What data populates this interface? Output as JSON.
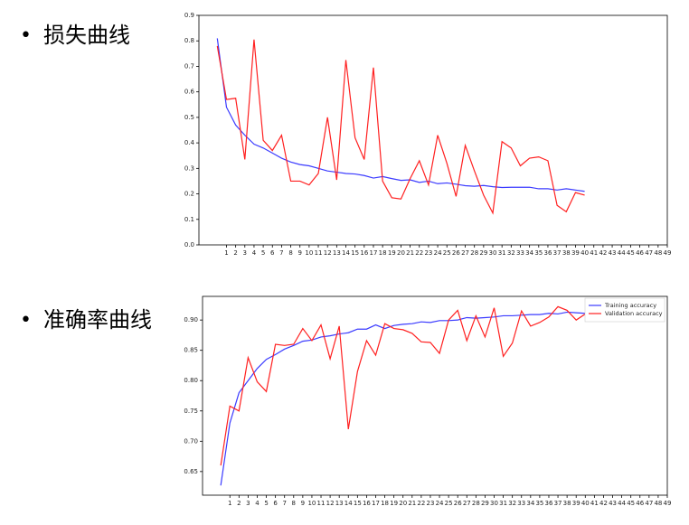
{
  "bullets": [
    "损失曲线",
    "准确率曲线"
  ],
  "chart_data": [
    {
      "type": "line",
      "xlim": [
        -2,
        49
      ],
      "ylim": [
        0,
        0.9
      ],
      "xticks": [
        1,
        2,
        3,
        4,
        5,
        6,
        7,
        8,
        9,
        10,
        11,
        12,
        13,
        14,
        15,
        16,
        17,
        18,
        19,
        20,
        21,
        22,
        23,
        24,
        25,
        26,
        27,
        28,
        29,
        30,
        31,
        32,
        33,
        34,
        35,
        36,
        37,
        38,
        39,
        40,
        41,
        42,
        43,
        44,
        45,
        46,
        47,
        48,
        49
      ],
      "yticks": [
        {
          "value": 0,
          "label": "0.0"
        },
        0.1,
        0.2,
        0.3,
        0.4,
        0.5,
        0.6,
        0.7,
        0.8,
        0.9
      ],
      "x": [
        0,
        1,
        2,
        3,
        4,
        5,
        6,
        7,
        8,
        9,
        10,
        11,
        12,
        13,
        14,
        15,
        16,
        17,
        18,
        19,
        20,
        21,
        22,
        23,
        24,
        25,
        26,
        27,
        28,
        29,
        30,
        31,
        32,
        33,
        34,
        35,
        36,
        37,
        38,
        39,
        40
      ],
      "series": [
        {
          "color": "#3b3bff",
          "values": [
            0.81,
            0.54,
            0.47,
            0.43,
            0.395,
            0.38,
            0.36,
            0.34,
            0.325,
            0.315,
            0.31,
            0.3,
            0.29,
            0.285,
            0.28,
            0.278,
            0.272,
            0.262,
            0.268,
            0.26,
            0.253,
            0.255,
            0.245,
            0.25,
            0.24,
            0.243,
            0.238,
            0.232,
            0.23,
            0.233,
            0.228,
            0.225,
            0.226,
            0.226,
            0.226,
            0.22,
            0.22,
            0.215,
            0.22,
            0.215,
            0.21
          ]
        },
        {
          "color": "#ff2020",
          "values": [
            0.78,
            0.57,
            0.575,
            0.335,
            0.805,
            0.41,
            0.37,
            0.43,
            0.25,
            0.25,
            0.235,
            0.28,
            0.5,
            0.255,
            0.725,
            0.42,
            0.335,
            0.695,
            0.25,
            0.185,
            0.18,
            0.26,
            0.33,
            0.235,
            0.43,
            0.32,
            0.19,
            0.39,
            0.29,
            0.195,
            0.125,
            0.405,
            0.38,
            0.31,
            0.34,
            0.345,
            0.33,
            0.155,
            0.13,
            0.205,
            0.195
          ]
        }
      ]
    },
    {
      "type": "line",
      "xlim": [
        -2,
        49
      ],
      "ylim": [
        0.611,
        0.939
      ],
      "xticks": [
        1,
        2,
        3,
        4,
        5,
        6,
        7,
        8,
        9,
        10,
        11,
        12,
        13,
        14,
        15,
        16,
        17,
        18,
        19,
        20,
        21,
        22,
        23,
        24,
        25,
        26,
        27,
        28,
        29,
        30,
        31,
        32,
        33,
        34,
        35,
        36,
        37,
        38,
        39,
        40,
        41,
        42,
        43,
        44,
        45,
        46,
        47,
        48,
        49
      ],
      "yticks": [
        0.65,
        {
          "value": 0.7,
          "label": "0.70"
        },
        0.75,
        {
          "value": 0.8,
          "label": "0.80"
        },
        0.85,
        {
          "value": 0.9,
          "label": "0.90"
        }
      ],
      "x": [
        0,
        1,
        2,
        3,
        4,
        5,
        6,
        7,
        8,
        9,
        10,
        11,
        12,
        13,
        14,
        15,
        16,
        17,
        18,
        19,
        20,
        21,
        22,
        23,
        24,
        25,
        26,
        27,
        28,
        29,
        30,
        31,
        32,
        33,
        34,
        35,
        36,
        37,
        38,
        39,
        40
      ],
      "legend": "upper right",
      "series": [
        {
          "name": "Training accuracy",
          "color": "#3b3bff",
          "values": [
            0.627,
            0.73,
            0.78,
            0.8,
            0.82,
            0.835,
            0.843,
            0.852,
            0.858,
            0.865,
            0.867,
            0.872,
            0.874,
            0.877,
            0.879,
            0.885,
            0.885,
            0.892,
            0.886,
            0.891,
            0.893,
            0.894,
            0.897,
            0.896,
            0.899,
            0.899,
            0.9,
            0.904,
            0.903,
            0.904,
            0.905,
            0.907,
            0.907,
            0.908,
            0.909,
            0.909,
            0.911,
            0.91,
            0.913,
            0.912,
            0.911
          ]
        },
        {
          "name": "Validation accuracy",
          "color": "#ff2020",
          "values": [
            0.66,
            0.758,
            0.75,
            0.838,
            0.798,
            0.782,
            0.86,
            0.858,
            0.86,
            0.886,
            0.866,
            0.892,
            0.836,
            0.89,
            0.72,
            0.815,
            0.866,
            0.842,
            0.894,
            0.886,
            0.884,
            0.878,
            0.864,
            0.863,
            0.845,
            0.9,
            0.916,
            0.866,
            0.907,
            0.872,
            0.92,
            0.84,
            0.862,
            0.915,
            0.89,
            0.896,
            0.905,
            0.922,
            0.916,
            0.9,
            0.91
          ]
        }
      ]
    }
  ]
}
